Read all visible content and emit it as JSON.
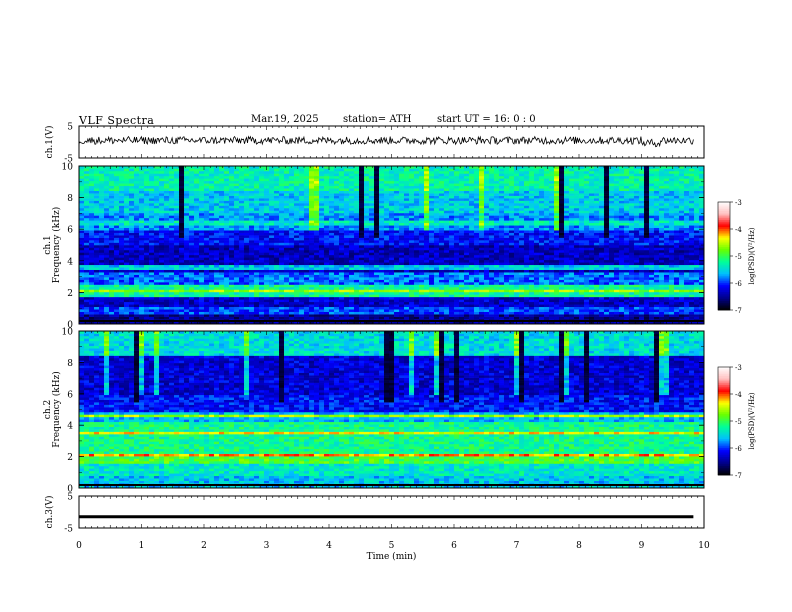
{
  "header": {
    "title": "VLF  Spectra",
    "date": "Mar.19, 2025",
    "station": "station= ATH",
    "start": "start  UT  =    16: 0   : 0"
  },
  "chart_data": [
    {
      "type": "line",
      "panel": "ch1-waveform",
      "ylabel": "ch.1(V)",
      "ylim": [
        -5,
        5
      ],
      "yticks": [
        "5",
        "-5"
      ],
      "xlim": [
        0,
        10
      ],
      "description_values": {
        "baseline_v": 0.5,
        "amplitude_v": 1.2,
        "ends_at_min": 9.83
      }
    },
    {
      "type": "heatmap",
      "panel": "ch1-spectrogram",
      "ylabel": "ch.1",
      "ylabel2": "Frequency (kHz)",
      "ylim": [
        0,
        10
      ],
      "yticks": [
        "0",
        "2",
        "4",
        "6",
        "8",
        "10"
      ],
      "xlim": [
        0,
        10
      ],
      "colorbar": {
        "label": "log(PSD)(V²/Hz)",
        "range": [
          -7,
          -3
        ],
        "ticks": [
          "-3",
          "-4",
          "-5",
          "-6",
          "-7"
        ]
      }
    },
    {
      "type": "heatmap",
      "panel": "ch2-spectrogram",
      "ylabel": "ch.2",
      "ylabel2": "Frequency (kHz)",
      "ylim": [
        0,
        10
      ],
      "yticks": [
        "0",
        "2",
        "4",
        "6",
        "8",
        "10"
      ],
      "xlim": [
        0,
        10
      ],
      "colorbar": {
        "label": "log(PSD)(V²/Hz)",
        "range": [
          -7,
          -3
        ],
        "ticks": [
          "-3",
          "-4",
          "-5",
          "-6",
          "-7"
        ]
      }
    },
    {
      "type": "line",
      "panel": "ch3-waveform",
      "ylabel": "ch.3(V)",
      "ylim": [
        -5,
        5
      ],
      "yticks": [
        "5",
        "-5"
      ],
      "xlim": [
        0,
        10
      ],
      "description_values": {
        "constant_v": -1.5,
        "ends_at_min": 9.83
      }
    }
  ],
  "xaxis": {
    "label": "Time  (min)",
    "ticks": [
      "0",
      "1",
      "2",
      "3",
      "4",
      "5",
      "6",
      "7",
      "8",
      "9",
      "10"
    ]
  },
  "colors": {
    "axis": "#000000",
    "colormap": [
      "#000000",
      "#00008b",
      "#0000ff",
      "#00bfff",
      "#00ff99",
      "#66ff00",
      "#ffff00",
      "#ff0000",
      "#ffc0c0",
      "#ffffff"
    ]
  }
}
